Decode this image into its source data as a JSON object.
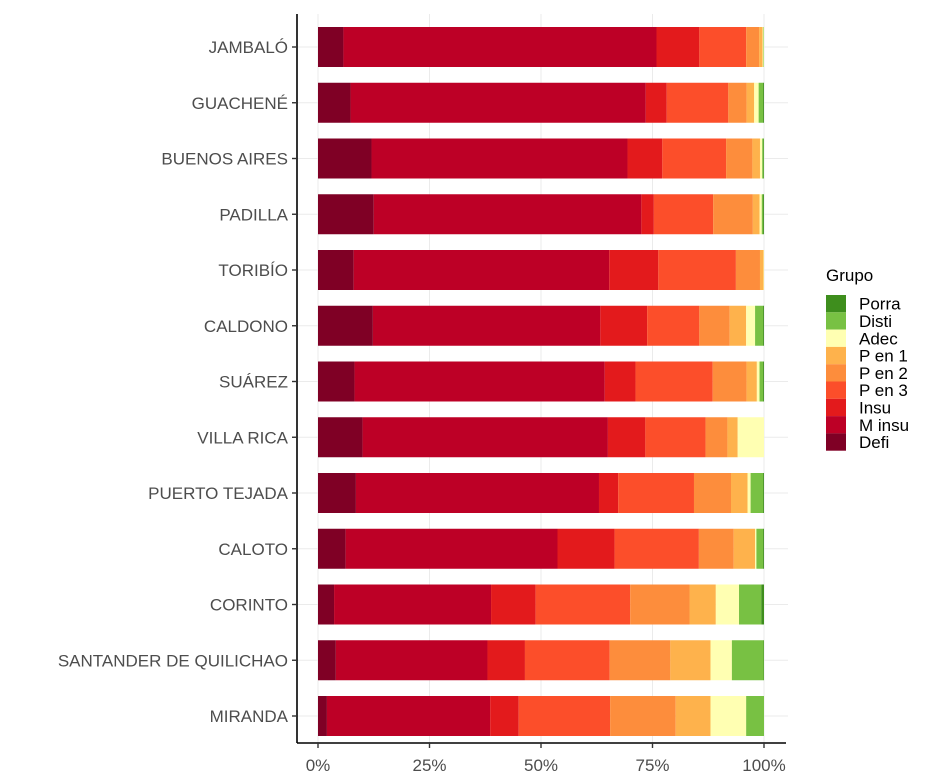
{
  "chart_data": {
    "type": "bar",
    "orientation": "horizontal",
    "stacked": true,
    "percent": true,
    "categories": [
      "JAMBALÓ",
      "GUACHENÉ",
      "BUENOS AIRES",
      "PADILLA",
      "TORIBÍO",
      "CALDONO",
      "SUÁREZ",
      "VILLA RICA",
      "PUERTO TEJADA",
      "CALOTO",
      "CORINTO",
      "SANTANDER DE QUILICHAO",
      "MIRANDA"
    ],
    "xlim": [
      0,
      100
    ],
    "x_ticks": [
      "0%",
      "25%",
      "50%",
      "75%",
      "100%"
    ],
    "grid": true,
    "legend_position": "right",
    "legend_title": "Grupo",
    "legend_order": [
      "Porra",
      "Disti",
      "Adec",
      "P en 1",
      "P en 2",
      "P en 3",
      "Insu",
      "M insu",
      "Defi"
    ],
    "series": [
      {
        "name": "Defi",
        "color": "#7F0025",
        "values": [
          5.7,
          7.3,
          12.0,
          12.5,
          8.0,
          12.3,
          8.2,
          10.0,
          8.5,
          6.2,
          3.6,
          4.0,
          2.0
        ]
      },
      {
        "name": "M insu",
        "color": "#BD0026",
        "values": [
          70.2,
          66.2,
          57.4,
          60.0,
          57.3,
          51.0,
          56.1,
          55.0,
          54.5,
          47.5,
          35.2,
          34.0,
          36.6
        ]
      },
      {
        "name": "Insu",
        "color": "#E31A1C",
        "values": [
          9.6,
          4.7,
          7.8,
          2.8,
          11.0,
          10.5,
          6.9,
          8.4,
          4.3,
          12.8,
          10.0,
          8.4,
          6.4
        ]
      },
      {
        "name": "P en 3",
        "color": "#FC4E2A",
        "values": [
          10.5,
          13.8,
          14.3,
          13.3,
          17.4,
          11.7,
          17.3,
          13.5,
          17.0,
          18.9,
          21.2,
          19.0,
          20.5
        ]
      },
      {
        "name": "P en 2",
        "color": "#FD8D3C",
        "values": [
          2.9,
          4.1,
          5.9,
          8.9,
          5.4,
          6.8,
          7.6,
          4.9,
          8.3,
          7.8,
          13.3,
          13.6,
          14.7
        ]
      },
      {
        "name": "P en 1",
        "color": "#FEB24C",
        "values": [
          0.8,
          1.7,
          1.7,
          1.5,
          0.8,
          3.7,
          2.3,
          2.3,
          3.7,
          4.8,
          5.9,
          9.0,
          7.8
        ]
      },
      {
        "name": "Adec",
        "color": "#FFFFB2",
        "values": [
          0.2,
          1.0,
          0.5,
          0.5,
          0.1,
          2.0,
          0.6,
          5.9,
          0.7,
          0.3,
          5.2,
          4.8,
          8.0
        ]
      },
      {
        "name": "Disti",
        "color": "#78C143",
        "values": [
          0.1,
          1.0,
          0.3,
          0.3,
          0.0,
          1.8,
          0.8,
          0.0,
          2.8,
          1.5,
          5.0,
          7.1,
          4.0
        ]
      },
      {
        "name": "Porra",
        "color": "#3E8E1D",
        "values": [
          0.0,
          0.2,
          0.1,
          0.2,
          0.0,
          0.2,
          0.2,
          0.0,
          0.2,
          0.2,
          0.6,
          0.1,
          0.0
        ]
      }
    ]
  }
}
